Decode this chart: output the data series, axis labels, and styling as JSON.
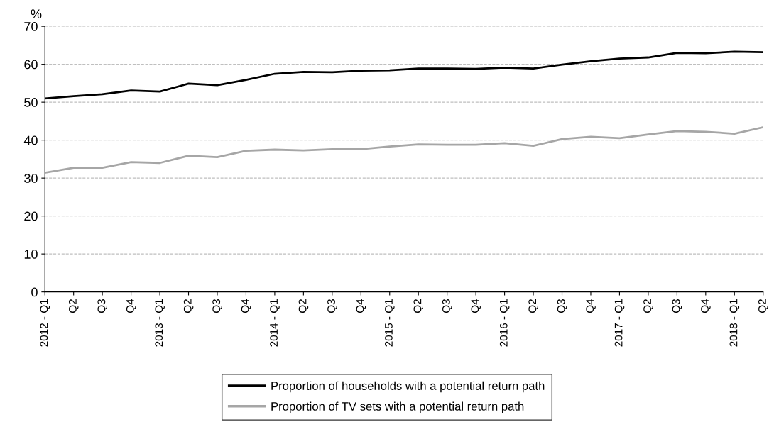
{
  "chart_data": {
    "type": "line",
    "ylabel": "%",
    "categories": [
      "2012 - Q1",
      "Q2",
      "Q3",
      "Q4",
      "2013 - Q1",
      "Q2",
      "Q3",
      "Q4",
      "2014 - Q1",
      "Q2",
      "Q3",
      "Q4",
      "2015 - Q1",
      "Q2",
      "Q3",
      "Q4",
      "2016 - Q1",
      "Q2",
      "Q3",
      "Q4",
      "2017 - Q1",
      "Q2",
      "Q3",
      "Q4",
      "2018 - Q1",
      "Q2"
    ],
    "series": [
      {
        "name": "Proportion of households with a potential return path",
        "color": "#000000",
        "values": [
          51.0,
          51.6,
          52.1,
          53.1,
          52.8,
          54.9,
          54.5,
          55.9,
          57.5,
          58.0,
          57.9,
          58.3,
          58.4,
          58.9,
          58.9,
          58.8,
          59.1,
          58.9,
          59.9,
          60.8,
          61.5,
          61.8,
          63.0,
          62.9,
          63.3,
          63.2
        ]
      },
      {
        "name": "Proportion of TV sets with a potential return path",
        "color": "#a6a6a6",
        "values": [
          31.4,
          32.7,
          32.7,
          34.2,
          34.0,
          35.9,
          35.5,
          37.2,
          37.5,
          37.3,
          37.6,
          37.6,
          38.3,
          38.9,
          38.8,
          38.8,
          39.2,
          38.5,
          40.3,
          40.9,
          40.5,
          41.5,
          42.4,
          42.2,
          41.7,
          43.4
        ]
      }
    ],
    "ylim": [
      0,
      70
    ],
    "yticks": [
      0,
      10,
      20,
      30,
      40,
      50,
      60,
      70
    ],
    "grid": "y",
    "legend": "bottom",
    "marker": "none",
    "line_style": "solid"
  }
}
